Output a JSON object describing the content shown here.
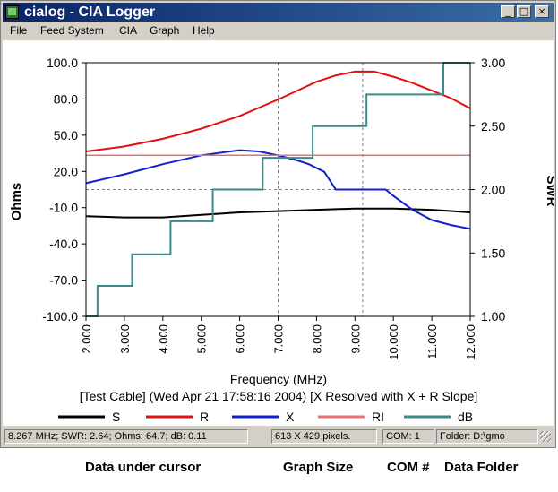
{
  "window": {
    "title": "cialog - CIA Logger",
    "minimize_glyph": "_",
    "maximize_glyph": "□",
    "close_glyph": "×"
  },
  "menu": [
    {
      "label": "File"
    },
    {
      "label": "Feed System"
    },
    {
      "label": "CIA"
    },
    {
      "label": "Graph"
    },
    {
      "label": "Help"
    }
  ],
  "graph": {
    "left_axis_label": "Ohms",
    "right_axis_label": "SWR",
    "x_axis_label": "Frequency (MHz)",
    "subtitle": "[Test Cable] (Wed Apr 21 17:58:16 2004) [X Resolved with X + R Slope]",
    "left_ticks": [
      "100.0",
      "80.0",
      "50.0",
      "20.0",
      "-10.0",
      "-40.0",
      "-70.0",
      "-100.0"
    ],
    "right_ticks": [
      "3.00",
      "2.50",
      "2.00",
      "1.50",
      "1.00"
    ],
    "x_ticks": [
      "2.000",
      "3.000",
      "4.000",
      "5.000",
      "6.000",
      "7.000",
      "8.000",
      "9.000",
      "10.000",
      "11.000",
      "12.000"
    ],
    "legend": [
      {
        "name": "S",
        "color": "#000000"
      },
      {
        "name": "R",
        "color": "#e01010"
      },
      {
        "name": "X",
        "color": "#1020d0"
      },
      {
        "name": "RI",
        "color": "#e87070"
      },
      {
        "name": "dB",
        "color": "#3a8a8a"
      }
    ],
    "cursor_lines": {
      "x": 7.0,
      "x2": 9.2,
      "y_swr": 2.0
    }
  },
  "chart_data": {
    "type": "line",
    "x_unit": "MHz",
    "xlim": [
      2.0,
      12.0
    ],
    "ylim_left": [
      -100,
      100
    ],
    "ylim_right": [
      1.0,
      3.0
    ],
    "series": [
      {
        "name": "S",
        "axis": "right",
        "x": [
          2.0,
          3.0,
          4.0,
          5.0,
          6.0,
          7.0,
          8.0,
          9.0,
          10.0,
          11.0,
          12.0
        ],
        "y": [
          1.79,
          1.78,
          1.78,
          1.8,
          1.82,
          1.83,
          1.84,
          1.85,
          1.85,
          1.84,
          1.82
        ]
      },
      {
        "name": "R",
        "axis": "left",
        "x": [
          2.0,
          3.0,
          4.0,
          5.0,
          6.0,
          7.0,
          7.5,
          8.0,
          8.5,
          9.0,
          9.5,
          10.0,
          10.5,
          11.0,
          11.5,
          12.0
        ],
        "y": [
          30,
          34,
          40,
          48,
          58,
          71,
          78,
          85,
          90,
          93,
          93,
          89,
          84,
          78,
          72,
          64
        ]
      },
      {
        "name": "X",
        "axis": "left",
        "x": [
          2.0,
          3.0,
          4.0,
          5.0,
          6.0,
          6.5,
          7.0,
          7.5,
          7.8,
          8.2,
          8.5,
          9.0,
          9.5,
          9.8,
          10.0,
          10.5,
          11.0,
          11.5,
          12.0
        ],
        "y": [
          5,
          12,
          20,
          27,
          31,
          30,
          27,
          23,
          20,
          14,
          0,
          0,
          0,
          0,
          -5,
          -16,
          -24,
          -28,
          -31
        ]
      },
      {
        "name": "RI",
        "axis": "left",
        "x": [
          2.0,
          12.0
        ],
        "y": [
          27,
          27
        ]
      },
      {
        "name": "dB",
        "axis": "right",
        "x": [
          2.0,
          2.3,
          2.3,
          3.2,
          3.2,
          4.2,
          4.2,
          5.3,
          5.3,
          6.6,
          6.6,
          7.9,
          7.9,
          9.3,
          9.3,
          11.3,
          11.3,
          12.0
        ],
        "y": [
          1.0,
          1.0,
          1.24,
          1.24,
          1.49,
          1.49,
          1.75,
          1.75,
          2.0,
          2.0,
          2.25,
          2.25,
          2.5,
          2.5,
          2.75,
          2.75,
          3.0,
          3.0
        ]
      }
    ]
  },
  "status": [
    {
      "text": "8.267 MHz; SWR:  2.64; Ohms: 64.7; dB:  0.11"
    },
    {
      "text": "613 X 429 pixels."
    },
    {
      "text": "COM: 1"
    },
    {
      "text": "Folder: D:\\gmo"
    }
  ],
  "captions": [
    {
      "text": "Data under cursor"
    },
    {
      "text": "Graph Size"
    },
    {
      "text": "COM #"
    },
    {
      "text": "Data Folder"
    }
  ]
}
